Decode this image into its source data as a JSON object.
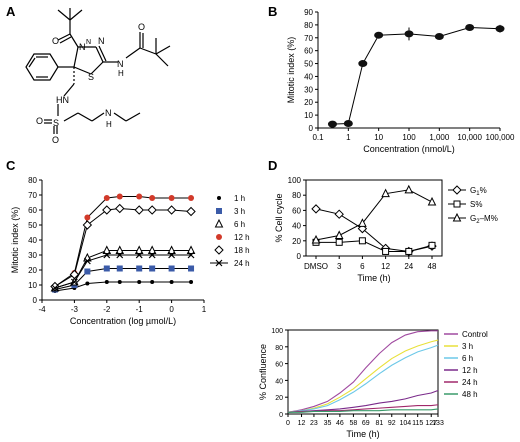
{
  "panels": {
    "A": {
      "letter": "A",
      "atoms": {
        "O1": "O",
        "O2": "O",
        "N1": "N",
        "N2": "N",
        "N3": "N",
        "S1": "S",
        "H_amide": "H",
        "HN": "HN",
        "S2": "S",
        "O3": "O",
        "O4": "O",
        "H_amine": "H",
        "N4": "N"
      }
    },
    "B": {
      "letter": "B"
    },
    "C": {
      "letter": "C"
    },
    "D": {
      "letter": "D"
    }
  },
  "colors": {
    "blue_square": "#3b5ba8",
    "red_circle": "#d23a2a",
    "control": "#a04aa0",
    "h3": "#e8e03a",
    "h6": "#6cc8e8",
    "h12": "#7a2a8a",
    "h24": "#a0286a",
    "h48": "#3a9a6a"
  },
  "chart_data": [
    {
      "panel": "B",
      "type": "scatter",
      "xscale": "log",
      "xlabel": "Concentration (nmol/L)",
      "ylabel": "Mitotic index (%)",
      "xlim": [
        0.1,
        100000
      ],
      "ylim": [
        0,
        90
      ],
      "x_ticks": [
        {
          "v": 0.1,
          "l": "0.1"
        },
        {
          "v": 1,
          "l": "1"
        },
        {
          "v": 10,
          "l": "10"
        },
        {
          "v": 100,
          "l": "100"
        },
        {
          "v": 1000,
          "l": "1,000"
        },
        {
          "v": 10000,
          "l": "10,000"
        },
        {
          "v": 100000,
          "l": "100,000"
        }
      ],
      "y_ticks": [
        "0",
        "10",
        "20",
        "30",
        "40",
        "50",
        "60",
        "70",
        "80",
        "90"
      ],
      "x": [
        0.3,
        1,
        3,
        10,
        100,
        1000,
        10000,
        100000
      ],
      "y": [
        3,
        3.5,
        50,
        72,
        73,
        71,
        78,
        77
      ],
      "error": [
        0,
        0,
        1,
        1,
        5,
        2,
        2,
        3
      ]
    },
    {
      "panel": "C",
      "type": "line",
      "xlabel": "Concentration (log µmol/L)",
      "ylabel": "Mitotic index (%)",
      "xlim": [
        -4,
        1
      ],
      "ylim": [
        0,
        80
      ],
      "x_ticks": [
        "-4",
        "-3",
        "-2",
        "-1",
        "0",
        "1"
      ],
      "y_ticks": [
        "0",
        "10",
        "20",
        "30",
        "40",
        "50",
        "60",
        "70",
        "80"
      ],
      "x": [
        -3.6,
        -3.0,
        -2.6,
        -2.0,
        -1.6,
        -1.0,
        -0.6,
        0.0,
        0.6
      ],
      "series": [
        {
          "name": "1 h",
          "marker": "dot",
          "values": [
            6,
            8,
            11,
            12,
            12,
            12,
            12,
            12,
            12
          ]
        },
        {
          "name": "3 h",
          "marker": "square",
          "values": [
            7,
            10,
            19,
            21,
            21,
            21,
            21,
            21,
            21
          ]
        },
        {
          "name": "6 h",
          "marker": "triangle",
          "values": [
            8,
            12,
            28,
            33,
            33,
            33,
            33,
            33,
            33
          ]
        },
        {
          "name": "12 h",
          "marker": "circle",
          "values": [
            9,
            18,
            55,
            68,
            69,
            69,
            68,
            68,
            68
          ]
        },
        {
          "name": "18 h",
          "marker": "diamond",
          "values": [
            9,
            17,
            50,
            60,
            61,
            60,
            60,
            60,
            59
          ]
        },
        {
          "name": "24 h",
          "marker": "x",
          "values": [
            8,
            12,
            26,
            30,
            30,
            30,
            30,
            30,
            30
          ]
        }
      ],
      "legend": "right"
    },
    {
      "panel": "D",
      "type": "line",
      "xlabel": "Time (h)",
      "ylabel": "% Cell cycle",
      "ylim": [
        0,
        100
      ],
      "categories": [
        "DMSO",
        "3",
        "6",
        "12",
        "24",
        "48"
      ],
      "y_ticks": [
        "0",
        "20",
        "40",
        "60",
        "80",
        "100"
      ],
      "series": [
        {
          "name": "G",
          "sub": "1",
          "suffix": "%",
          "marker": "diamond",
          "values": [
            62,
            55,
            36,
            10,
            6,
            13
          ]
        },
        {
          "name": "S%",
          "sub": "",
          "suffix": "",
          "marker": "square",
          "values": [
            18,
            18,
            20,
            6,
            6,
            14
          ]
        },
        {
          "name": "G",
          "sub": "2",
          "suffix": "–M%",
          "marker": "triangle",
          "values": [
            21,
            27,
            43,
            82,
            87,
            71
          ]
        }
      ],
      "legend": "right"
    },
    {
      "panel": "D",
      "type": "line",
      "xlabel": "Time (h)",
      "ylabel": "% Confluence",
      "xlim": [
        0,
        133
      ],
      "ylim": [
        0,
        100
      ],
      "x_ticks": [
        "0",
        "12",
        "23",
        "35",
        "46",
        "58",
        "69",
        "81",
        "92",
        "104",
        "115",
        "127",
        "133"
      ],
      "y_ticks": [
        "0",
        "20",
        "40",
        "60",
        "80",
        "100"
      ],
      "series": [
        {
          "name": "Control",
          "color": "#a04aa0",
          "x": [
            0,
            12,
            23,
            35,
            46,
            58,
            69,
            81,
            92,
            104,
            115,
            127,
            133
          ],
          "values": [
            2,
            5,
            9,
            15,
            25,
            38,
            55,
            72,
            85,
            94,
            98,
            99,
            99
          ]
        },
        {
          "name": "3 h",
          "color": "#e8e03a",
          "x": [
            0,
            12,
            23,
            35,
            46,
            58,
            69,
            81,
            92,
            104,
            115,
            127,
            133
          ],
          "values": [
            2,
            4,
            7,
            12,
            20,
            30,
            42,
            55,
            66,
            75,
            81,
            86,
            88
          ]
        },
        {
          "name": "6 h",
          "color": "#6cc8e8",
          "x": [
            0,
            12,
            23,
            35,
            46,
            58,
            69,
            81,
            92,
            104,
            115,
            127,
            133
          ],
          "values": [
            2,
            4,
            6,
            10,
            17,
            26,
            36,
            48,
            58,
            67,
            74,
            79,
            82
          ]
        },
        {
          "name": "12 h",
          "color": "#7a2a8a",
          "x": [
            0,
            12,
            23,
            35,
            46,
            58,
            69,
            81,
            92,
            104,
            115,
            127,
            133
          ],
          "values": [
            2,
            3,
            4,
            5,
            6,
            8,
            10,
            13,
            15,
            18,
            22,
            25,
            28
          ]
        },
        {
          "name": "24 h",
          "color": "#a0286a",
          "x": [
            0,
            12,
            23,
            35,
            46,
            58,
            69,
            81,
            92,
            104,
            115,
            127,
            133
          ],
          "values": [
            2,
            3,
            3,
            4,
            4,
            5,
            6,
            7,
            8,
            9,
            10,
            10,
            11
          ]
        },
        {
          "name": "48 h",
          "color": "#3a9a6a",
          "x": [
            0,
            12,
            23,
            35,
            46,
            58,
            69,
            81,
            92,
            104,
            115,
            127,
            133
          ],
          "values": [
            2,
            2,
            3,
            3,
            3,
            4,
            4,
            4,
            5,
            5,
            5,
            5,
            6
          ]
        }
      ],
      "legend": "right"
    }
  ]
}
